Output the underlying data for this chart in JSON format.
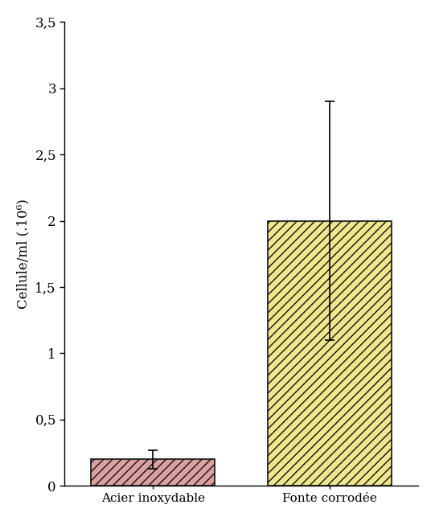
{
  "categories": [
    "Acier inoxydable",
    "Fonte corrodée"
  ],
  "values": [
    0.2,
    2.0
  ],
  "errors_upper": [
    0.07,
    0.9
  ],
  "errors_lower": [
    0.07,
    0.9
  ],
  "bar_colors": [
    "#dda0a0",
    "#f0e68c"
  ],
  "bar_edgecolors": [
    "#111111",
    "#111111"
  ],
  "hatch_patterns": [
    "///",
    "///"
  ],
  "ylabel": "Cellule/ml (.10⁶)",
  "ylabel_fontsize": 12,
  "ylim": [
    0,
    3.5
  ],
  "yticks": [
    0,
    0.5,
    1.0,
    1.5,
    2.0,
    2.5,
    3.0,
    3.5
  ],
  "ytick_labels": [
    "0",
    "0,5",
    "1",
    "1,5",
    "2",
    "2,5",
    "3",
    "3,5"
  ],
  "tick_fontsize": 12,
  "xticklabels_fontsize": 11,
  "capsize": 4,
  "bar_width": 0.35,
  "background_color": "#ffffff",
  "error_linewidth": 1.2,
  "error_capthick": 1.2,
  "x_positions": [
    0.25,
    0.75
  ],
  "xlim": [
    0,
    1.0
  ]
}
